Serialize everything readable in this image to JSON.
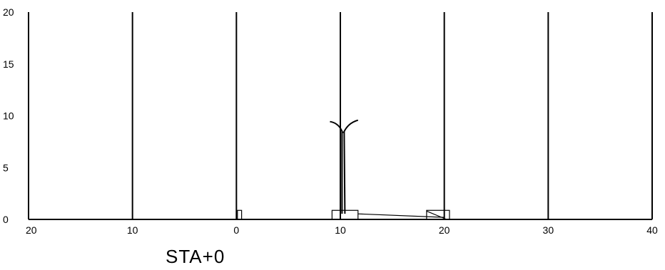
{
  "chart_data": {
    "type": "cross-section",
    "station_label": "STA+0",
    "y_ticks": [
      "0",
      "5",
      "10",
      "15",
      "20"
    ],
    "x_ticks": [
      "20",
      "10",
      "0",
      "10",
      "20",
      "30",
      "40"
    ],
    "x_axis_values": [
      -20,
      -10,
      0,
      10,
      20,
      30,
      40
    ],
    "y_axis_values": [
      0,
      5,
      10,
      15,
      20
    ],
    "xlim": [
      -20,
      40
    ],
    "ylim": [
      0,
      20
    ],
    "grid_vertical_lines_at": [
      -10,
      0,
      10,
      20,
      30,
      40
    ],
    "ground_line_y": 0,
    "features": [
      {
        "name": "curb-left",
        "kind": "rect",
        "x": [
          0.1,
          0.5
        ],
        "y": [
          0,
          0.6
        ]
      },
      {
        "name": "median-pad",
        "kind": "rect",
        "x": [
          9.2,
          11.7
        ],
        "y": [
          0,
          0.6
        ]
      },
      {
        "name": "light-pole",
        "kind": "pole",
        "x": 10.3,
        "height": 9.3,
        "arm_span": [
          9.0,
          11.7
        ]
      },
      {
        "name": "curb-right",
        "kind": "rect",
        "x": [
          18.3,
          20.5
        ],
        "y": [
          0,
          0.6
        ]
      },
      {
        "name": "slope-line",
        "kind": "line",
        "from": [
          11.7,
          0.4
        ],
        "to": [
          20.0,
          0.2
        ]
      }
    ]
  }
}
